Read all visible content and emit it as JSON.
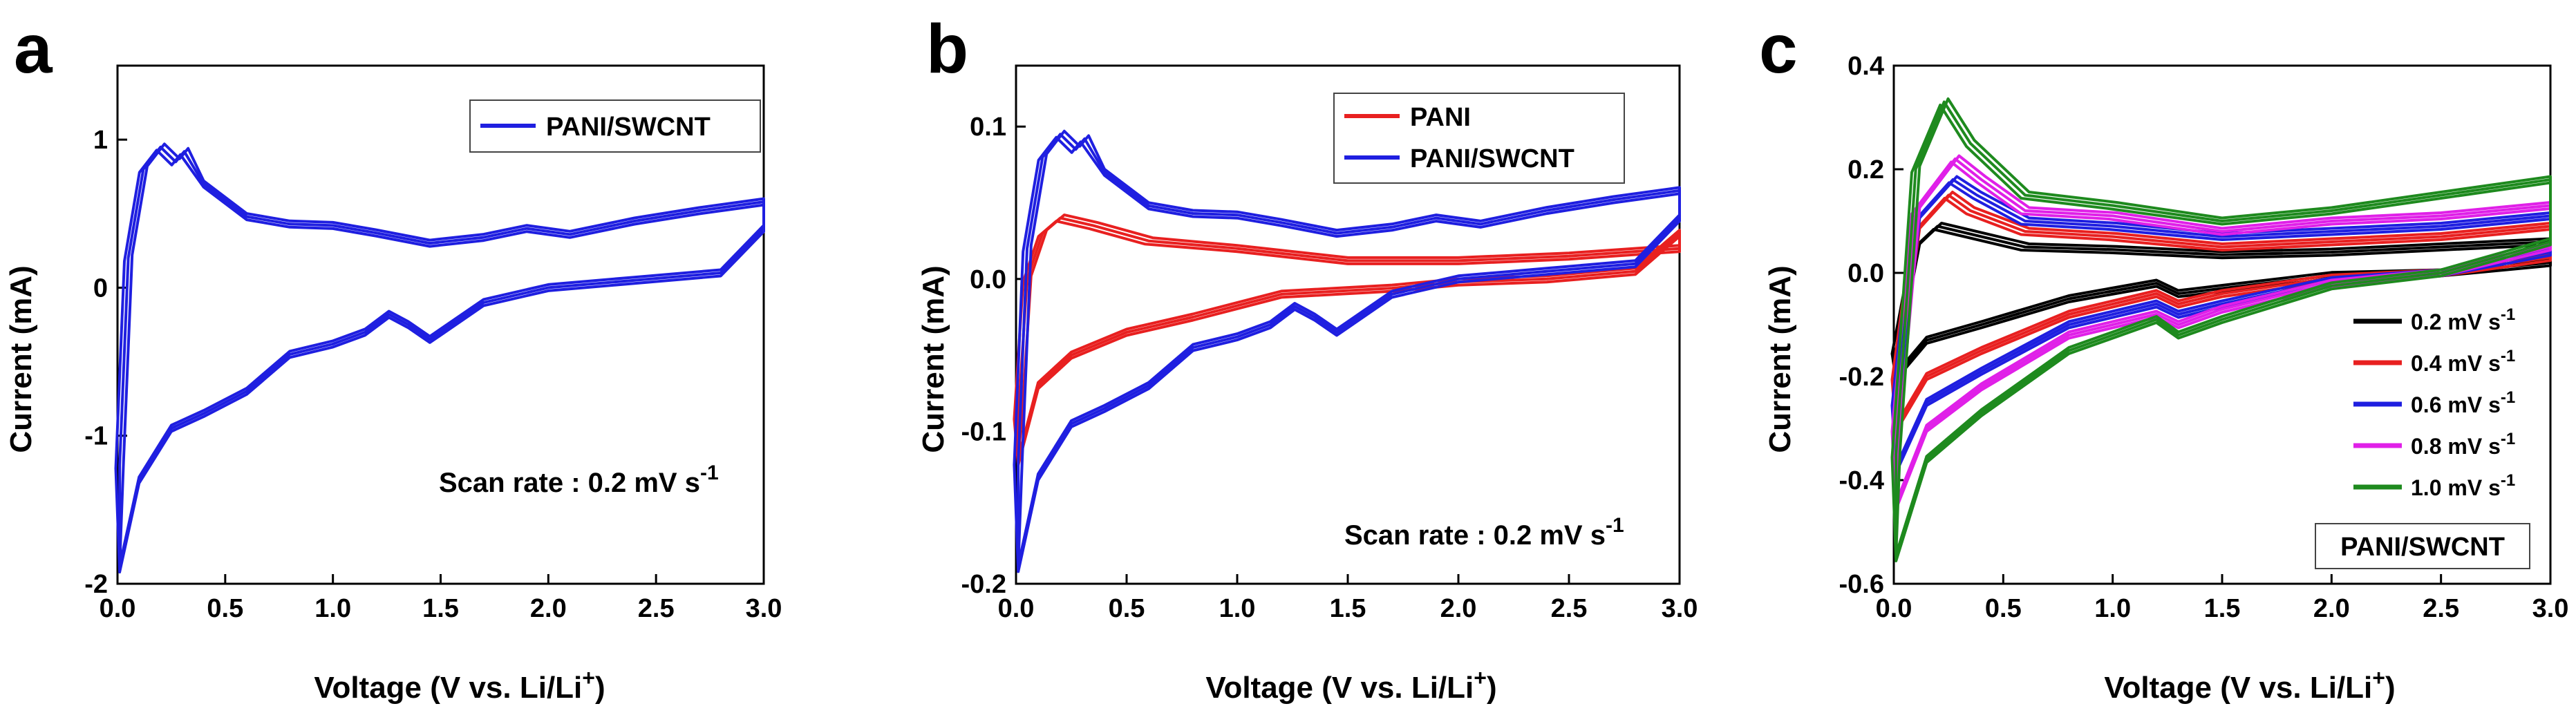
{
  "chart_data": [
    {
      "panel_label": "a",
      "type": "line",
      "xlabel_main": "Voltage (V vs. Li/Li",
      "xlabel_sup": "+",
      "xlabel_end": ")",
      "ylabel": "Current (mA)",
      "xlim": [
        0,
        3.0
      ],
      "ylim": [
        -2,
        1.5
      ],
      "xticks": [
        "0.0",
        "0.5",
        "1.0",
        "1.5",
        "2.0",
        "2.5",
        "3.0"
      ],
      "yticks": [
        "-2",
        "-1",
        "0",
        "1"
      ],
      "annotation_main": "Scan rate : 0.2 mV s",
      "annotation_sup": "-1",
      "legend": [
        "PANI/SWCNT"
      ],
      "series": [
        {
          "name": "PANI/SWCNT",
          "color": "#1f1fe0",
          "upper": [
            [
              0.01,
              -1.2
            ],
            [
              0.05,
              0.2
            ],
            [
              0.12,
              0.8
            ],
            [
              0.2,
              0.95
            ],
            [
              0.27,
              0.85
            ],
            [
              0.31,
              0.92
            ],
            [
              0.4,
              0.7
            ],
            [
              0.6,
              0.48
            ],
            [
              0.8,
              0.43
            ],
            [
              1.0,
              0.42
            ],
            [
              1.2,
              0.37
            ],
            [
              1.45,
              0.3
            ],
            [
              1.7,
              0.34
            ],
            [
              1.9,
              0.4
            ],
            [
              2.1,
              0.36
            ],
            [
              2.4,
              0.45
            ],
            [
              2.7,
              0.52
            ],
            [
              3.0,
              0.58
            ]
          ],
          "lower": [
            [
              3.0,
              0.4
            ],
            [
              2.8,
              0.1
            ],
            [
              2.4,
              0.05
            ],
            [
              2.0,
              0.0
            ],
            [
              1.7,
              -0.1
            ],
            [
              1.5,
              -0.3
            ],
            [
              1.45,
              -0.35
            ],
            [
              1.35,
              -0.25
            ],
            [
              1.26,
              -0.18
            ],
            [
              1.15,
              -0.3
            ],
            [
              1.0,
              -0.38
            ],
            [
              0.8,
              -0.45
            ],
            [
              0.6,
              -0.7
            ],
            [
              0.4,
              -0.85
            ],
            [
              0.25,
              -0.95
            ],
            [
              0.1,
              -1.3
            ],
            [
              0.01,
              -1.9
            ]
          ]
        }
      ]
    },
    {
      "panel_label": "b",
      "type": "line",
      "xlabel_main": "Voltage (V vs. Li/Li",
      "xlabel_sup": "+",
      "xlabel_end": ")",
      "ylabel": "Current (mA)",
      "xlim": [
        0,
        3.0
      ],
      "ylim": [
        -0.2,
        0.14
      ],
      "xticks": [
        "0.0",
        "0.5",
        "1.0",
        "1.5",
        "2.0",
        "2.5",
        "3.0"
      ],
      "yticks": [
        "-0.2",
        "-0.1",
        "0.0",
        "0.1"
      ],
      "annotation_main": "Scan rate : 0.2 mV s",
      "annotation_sup": "-1",
      "legend": [
        "PANI",
        "PANI/SWCNT"
      ],
      "series": [
        {
          "name": "PANI",
          "color": "#e82020",
          "upper": [
            [
              0.01,
              -0.09
            ],
            [
              0.05,
              0.0
            ],
            [
              0.12,
              0.03
            ],
            [
              0.2,
              0.04
            ],
            [
              0.35,
              0.035
            ],
            [
              0.6,
              0.025
            ],
            [
              1.0,
              0.02
            ],
            [
              1.5,
              0.012
            ],
            [
              2.0,
              0.012
            ],
            [
              2.5,
              0.015
            ],
            [
              3.0,
              0.02
            ]
          ],
          "lower": [
            [
              3.0,
              0.03
            ],
            [
              2.8,
              0.005
            ],
            [
              2.4,
              0.0
            ],
            [
              2.0,
              -0.002
            ],
            [
              1.7,
              -0.006
            ],
            [
              1.2,
              -0.01
            ],
            [
              0.8,
              -0.025
            ],
            [
              0.5,
              -0.035
            ],
            [
              0.25,
              -0.05
            ],
            [
              0.1,
              -0.07
            ],
            [
              0.01,
              -0.12
            ]
          ]
        },
        {
          "name": "PANI/SWCNT",
          "color": "#1f1fe0",
          "upper": [
            [
              0.01,
              -0.12
            ],
            [
              0.05,
              0.02
            ],
            [
              0.12,
              0.08
            ],
            [
              0.2,
              0.095
            ],
            [
              0.27,
              0.085
            ],
            [
              0.31,
              0.092
            ],
            [
              0.4,
              0.07
            ],
            [
              0.6,
              0.048
            ],
            [
              0.8,
              0.043
            ],
            [
              1.0,
              0.042
            ],
            [
              1.2,
              0.037
            ],
            [
              1.45,
              0.03
            ],
            [
              1.7,
              0.034
            ],
            [
              1.9,
              0.04
            ],
            [
              2.1,
              0.036
            ],
            [
              2.4,
              0.045
            ],
            [
              2.7,
              0.052
            ],
            [
              3.0,
              0.058
            ]
          ],
          "lower": [
            [
              3.0,
              0.04
            ],
            [
              2.8,
              0.01
            ],
            [
              2.4,
              0.005
            ],
            [
              2.0,
              0.0
            ],
            [
              1.7,
              -0.01
            ],
            [
              1.5,
              -0.03
            ],
            [
              1.45,
              -0.035
            ],
            [
              1.35,
              -0.025
            ],
            [
              1.26,
              -0.018
            ],
            [
              1.15,
              -0.03
            ],
            [
              1.0,
              -0.038
            ],
            [
              0.8,
              -0.045
            ],
            [
              0.6,
              -0.07
            ],
            [
              0.4,
              -0.085
            ],
            [
              0.25,
              -0.095
            ],
            [
              0.1,
              -0.13
            ],
            [
              0.01,
              -0.19
            ]
          ]
        }
      ]
    },
    {
      "panel_label": "c",
      "type": "line",
      "xlabel_main": "Voltage (V vs. Li/Li",
      "xlabel_sup": "+",
      "xlabel_end": ")",
      "ylabel": "Current (mA)",
      "xlim": [
        0,
        3.0
      ],
      "ylim": [
        -0.6,
        0.4
      ],
      "xticks": [
        "0.0",
        "0.5",
        "1.0",
        "1.5",
        "2.0",
        "2.5",
        "3.0"
      ],
      "yticks": [
        "-0.6",
        "-0.4",
        "-0.2",
        "0.0",
        "0.2",
        "0.4"
      ],
      "boxed_label": "PANI/SWCNT",
      "legend_unit_sup": "-1",
      "legend": [
        "0.2 mV s",
        "0.4 mV s",
        "0.6 mV s",
        "0.8 mV s",
        "1.0 mV s"
      ],
      "series": [
        {
          "name": "0.2 mV s",
          "color": "#000000",
          "upper": [
            [
              0.01,
              -0.15
            ],
            [
              0.1,
              0.05
            ],
            [
              0.2,
              0.09
            ],
            [
              0.3,
              0.08
            ],
            [
              0.6,
              0.05
            ],
            [
              1.0,
              0.045
            ],
            [
              1.5,
              0.035
            ],
            [
              2.0,
              0.04
            ],
            [
              2.5,
              0.05
            ],
            [
              3.0,
              0.06
            ]
          ],
          "lower": [
            [
              3.0,
              0.02
            ],
            [
              2.5,
              0.0
            ],
            [
              2.0,
              -0.005
            ],
            [
              1.5,
              -0.03
            ],
            [
              1.3,
              -0.04
            ],
            [
              1.2,
              -0.02
            ],
            [
              0.8,
              -0.05
            ],
            [
              0.4,
              -0.1
            ],
            [
              0.15,
              -0.13
            ],
            [
              0.01,
              -0.2
            ]
          ]
        },
        {
          "name": "0.4 mV s",
          "color": "#e82020",
          "upper": [
            [
              0.01,
              -0.2
            ],
            [
              0.1,
              0.08
            ],
            [
              0.25,
              0.15
            ],
            [
              0.35,
              0.12
            ],
            [
              0.6,
              0.08
            ],
            [
              1.0,
              0.07
            ],
            [
              1.5,
              0.05
            ],
            [
              2.0,
              0.06
            ],
            [
              2.5,
              0.07
            ],
            [
              3.0,
              0.09
            ]
          ],
          "lower": [
            [
              3.0,
              0.03
            ],
            [
              2.5,
              0.0
            ],
            [
              2.0,
              -0.01
            ],
            [
              1.5,
              -0.04
            ],
            [
              1.3,
              -0.06
            ],
            [
              1.2,
              -0.04
            ],
            [
              0.8,
              -0.08
            ],
            [
              0.4,
              -0.15
            ],
            [
              0.15,
              -0.2
            ],
            [
              0.01,
              -0.3
            ]
          ]
        },
        {
          "name": "0.6 mV s",
          "color": "#1f1fe0",
          "upper": [
            [
              0.01,
              -0.25
            ],
            [
              0.1,
              0.1
            ],
            [
              0.27,
              0.18
            ],
            [
              0.38,
              0.15
            ],
            [
              0.6,
              0.1
            ],
            [
              1.0,
              0.09
            ],
            [
              1.5,
              0.07
            ],
            [
              2.0,
              0.08
            ],
            [
              2.5,
              0.09
            ],
            [
              3.0,
              0.11
            ]
          ],
          "lower": [
            [
              3.0,
              0.04
            ],
            [
              2.5,
              0.0
            ],
            [
              2.0,
              -0.015
            ],
            [
              1.5,
              -0.06
            ],
            [
              1.3,
              -0.08
            ],
            [
              1.2,
              -0.06
            ],
            [
              0.8,
              -0.1
            ],
            [
              0.4,
              -0.19
            ],
            [
              0.15,
              -0.25
            ],
            [
              0.01,
              -0.38
            ]
          ]
        },
        {
          "name": "0.8 mV s",
          "color": "#e020e8",
          "upper": [
            [
              0.01,
              -0.3
            ],
            [
              0.1,
              0.12
            ],
            [
              0.28,
              0.22
            ],
            [
              0.4,
              0.18
            ],
            [
              0.6,
              0.12
            ],
            [
              1.0,
              0.11
            ],
            [
              1.5,
              0.08
            ],
            [
              2.0,
              0.1
            ],
            [
              2.5,
              0.11
            ],
            [
              3.0,
              0.13
            ]
          ],
          "lower": [
            [
              3.0,
              0.05
            ],
            [
              2.5,
              0.0
            ],
            [
              2.0,
              -0.02
            ],
            [
              1.5,
              -0.07
            ],
            [
              1.3,
              -0.1
            ],
            [
              1.2,
              -0.08
            ],
            [
              0.8,
              -0.12
            ],
            [
              0.4,
              -0.22
            ],
            [
              0.15,
              -0.3
            ],
            [
              0.01,
              -0.45
            ]
          ]
        },
        {
          "name": "1.0 mV s",
          "color": "#1e8a1e",
          "upper": [
            [
              0.01,
              -0.35
            ],
            [
              0.1,
              0.2
            ],
            [
              0.23,
              0.33
            ],
            [
              0.35,
              0.25
            ],
            [
              0.6,
              0.15
            ],
            [
              1.0,
              0.13
            ],
            [
              1.5,
              0.1
            ],
            [
              2.0,
              0.12
            ],
            [
              2.5,
              0.15
            ],
            [
              3.0,
              0.18
            ]
          ],
          "lower": [
            [
              3.0,
              0.06
            ],
            [
              2.5,
              0.0
            ],
            [
              2.0,
              -0.025
            ],
            [
              1.5,
              -0.09
            ],
            [
              1.3,
              -0.12
            ],
            [
              1.2,
              -0.09
            ],
            [
              0.8,
              -0.15
            ],
            [
              0.4,
              -0.27
            ],
            [
              0.15,
              -0.36
            ],
            [
              0.01,
              -0.55
            ]
          ]
        }
      ]
    }
  ]
}
